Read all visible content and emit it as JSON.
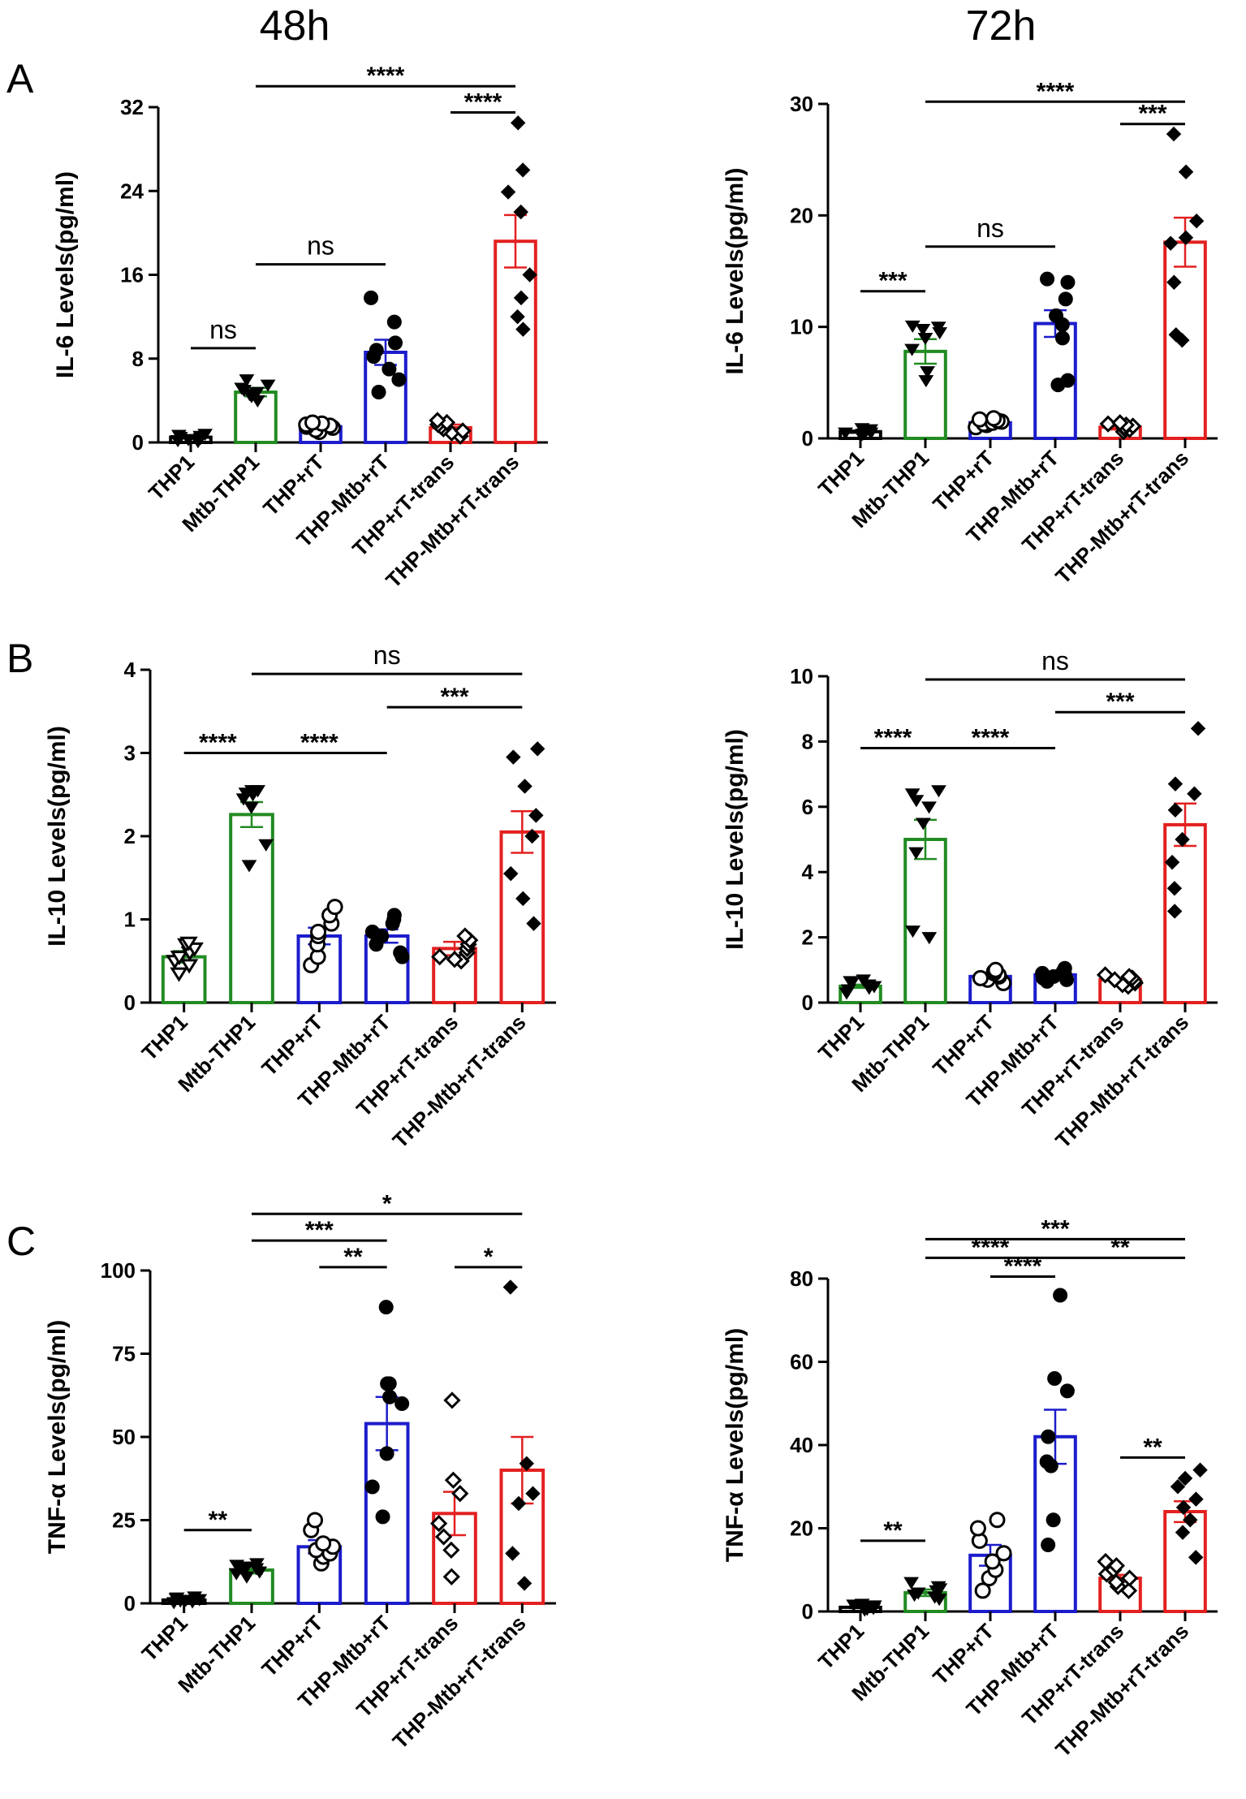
{
  "column_titles": [
    "48h",
    "72h"
  ],
  "panel_letters": [
    "A",
    "B",
    "C"
  ],
  "chart_data": [
    {
      "id": "A48",
      "type": "bar",
      "title": "",
      "xlabel": "",
      "ylabel": "IL-6 Levels(pg/ml)",
      "ylim": [
        0,
        32
      ],
      "yticks": [
        0,
        8,
        16,
        24,
        32
      ],
      "categories": [
        "THP1",
        "Mtb-THP1",
        "THP+rT",
        "THP-Mtb+rT",
        "THP+rT-trans",
        "THP-Mtb+rT-trans"
      ],
      "colors": [
        "#000000",
        "#228B22",
        "#1c1ccc",
        "#1c1ccc",
        "#e32020",
        "#e32020"
      ],
      "markers": [
        "tri",
        "tri",
        "circle-open",
        "circle",
        "diamond-open",
        "diamond"
      ],
      "values": [
        0.5,
        4.8,
        1.5,
        8.6,
        1.4,
        19.2
      ],
      "sem": [
        0.1,
        0.4,
        0.2,
        1.2,
        0.3,
        2.5
      ],
      "points": [
        [
          0.1,
          0.2,
          0.3,
          0.4,
          0.5,
          0.6,
          0.7,
          0.8
        ],
        [
          4.0,
          4.4,
          4.6,
          4.8,
          5.0,
          5.2,
          5.5,
          6.0
        ],
        [
          1.0,
          1.2,
          1.4,
          1.5,
          1.6,
          1.7,
          1.8,
          1.9
        ],
        [
          4.8,
          6.0,
          7.0,
          8.2,
          8.8,
          9.5,
          11.5,
          13.8
        ],
        [
          0.6,
          0.9,
          1.1,
          1.3,
          1.5,
          1.7,
          1.9,
          2.1
        ],
        [
          10.8,
          12.0,
          13.8,
          16.0,
          22.0,
          23.9,
          26.0,
          30.5
        ]
      ],
      "comparisons": [
        {
          "from": 0,
          "to": 1,
          "label": "ns",
          "y": 9
        },
        {
          "from": 1,
          "to": 3,
          "label": "ns",
          "y": 17
        },
        {
          "from": 4,
          "to": 5,
          "label": "****",
          "y": 31.5
        },
        {
          "from": 1,
          "to": 5,
          "label": "****",
          "y": 34
        }
      ]
    },
    {
      "id": "A72",
      "type": "bar",
      "title": "",
      "xlabel": "",
      "ylabel": "IL-6 Levels(pg/ml)",
      "ylim": [
        0,
        30
      ],
      "yticks": [
        0,
        10,
        20,
        30
      ],
      "categories": [
        "THP1",
        "Mtb-THP1",
        "THP+rT",
        "THP-Mtb+rT",
        "THP+rT-trans",
        "THP-Mtb+rT-trans"
      ],
      "colors": [
        "#000000",
        "#228B22",
        "#1c1ccc",
        "#1c1ccc",
        "#e32020",
        "#e32020"
      ],
      "markers": [
        "tri",
        "tri",
        "circle-open",
        "circle",
        "diamond-open",
        "diamond"
      ],
      "values": [
        0.6,
        7.8,
        1.4,
        10.3,
        1.0,
        17.6
      ],
      "sem": [
        0.1,
        1.1,
        0.2,
        1.2,
        0.2,
        2.2
      ],
      "points": [
        [
          0.3,
          0.4,
          0.5,
          0.5,
          0.6,
          0.7,
          0.8,
          0.9
        ],
        [
          5.2,
          6.0,
          8.0,
          9.0,
          9.5,
          9.8,
          10.0,
          10.1
        ],
        [
          1.0,
          1.2,
          1.3,
          1.4,
          1.5,
          1.6,
          1.7,
          1.8
        ],
        [
          4.8,
          5.2,
          9.0,
          10.2,
          11.0,
          12.5,
          14.0,
          14.3
        ],
        [
          0.6,
          0.8,
          0.9,
          1.0,
          1.1,
          1.2,
          1.3,
          1.4
        ],
        [
          8.8,
          9.3,
          14.0,
          17.5,
          18.0,
          19.5,
          23.9,
          27.3
        ]
      ],
      "comparisons": [
        {
          "from": 0,
          "to": 1,
          "label": "***",
          "y": 13.2
        },
        {
          "from": 1,
          "to": 3,
          "label": "ns",
          "y": 17.2
        },
        {
          "from": 4,
          "to": 5,
          "label": "***",
          "y": 28.2
        },
        {
          "from": 1,
          "to": 5,
          "label": "****",
          "y": 30.2
        }
      ]
    },
    {
      "id": "B48",
      "type": "bar",
      "title": "",
      "xlabel": "",
      "ylabel": "IL-10 Levels(pg/ml)",
      "ylim": [
        0,
        4
      ],
      "yticks": [
        0,
        1,
        2,
        3,
        4
      ],
      "categories": [
        "THP1",
        "Mtb-THP1",
        "THP+rT",
        "THP-Mtb+rT",
        "THP+rT-trans",
        "THP-Mtb+rT-trans"
      ],
      "colors": [
        "#228B22",
        "#228B22",
        "#1c1ccc",
        "#1c1ccc",
        "#e32020",
        "#e32020"
      ],
      "markers": [
        "tri-open",
        "tri",
        "circle-open",
        "circle",
        "diamond-open",
        "diamond"
      ],
      "values": [
        0.55,
        2.26,
        0.8,
        0.8,
        0.65,
        2.05
      ],
      "sem": [
        0.07,
        0.15,
        0.1,
        0.08,
        0.08,
        0.25
      ],
      "points": [
        [
          0.35,
          0.45,
          0.5,
          0.55,
          0.6,
          0.65,
          0.7,
          0.72
        ],
        [
          1.65,
          1.9,
          2.35,
          2.45,
          2.5,
          2.52,
          2.55,
          2.55
        ],
        [
          0.45,
          0.55,
          0.7,
          0.8,
          0.85,
          0.95,
          1.05,
          1.15
        ],
        [
          0.55,
          0.6,
          0.7,
          0.8,
          0.85,
          0.95,
          1.0,
          1.05
        ],
        [
          0.5,
          0.52,
          0.55,
          0.6,
          0.65,
          0.7,
          0.75,
          0.8
        ],
        [
          0.95,
          1.25,
          1.55,
          2.0,
          2.25,
          2.6,
          2.95,
          3.05
        ]
      ],
      "comparisons": [
        {
          "from": 0,
          "to": 1,
          "label": "****",
          "y": 3.0
        },
        {
          "from": 1,
          "to": 3,
          "label": "****",
          "y": 3.0
        },
        {
          "from": 3,
          "to": 5,
          "label": "***",
          "y": 3.55
        },
        {
          "from": 1,
          "to": 5,
          "label": "ns",
          "y": 3.95
        }
      ]
    },
    {
      "id": "B72",
      "type": "bar",
      "title": "",
      "xlabel": "",
      "ylabel": "IL-10 Levels(pg/ml)",
      "ylim": [
        0,
        10
      ],
      "yticks": [
        0,
        2,
        4,
        6,
        8,
        10
      ],
      "categories": [
        "THP1",
        "Mtb-THP1",
        "THP+rT",
        "THP-Mtb+rT",
        "THP+rT-trans",
        "THP-Mtb+rT-trans"
      ],
      "colors": [
        "#228B22",
        "#228B22",
        "#1c1ccc",
        "#1c1ccc",
        "#e32020",
        "#e32020"
      ],
      "markers": [
        "tri",
        "tri",
        "circle-open",
        "circle",
        "diamond-open",
        "diamond"
      ],
      "values": [
        0.5,
        5.0,
        0.8,
        0.85,
        0.7,
        5.45
      ],
      "sem": [
        0.05,
        0.6,
        0.05,
        0.05,
        0.05,
        0.65
      ],
      "points": [
        [
          0.3,
          0.4,
          0.45,
          0.5,
          0.55,
          0.6,
          0.65,
          0.7
        ],
        [
          2.0,
          2.2,
          4.6,
          5.5,
          6.0,
          6.2,
          6.4,
          6.5
        ],
        [
          0.6,
          0.7,
          0.75,
          0.8,
          0.85,
          0.9,
          0.95,
          1.0
        ],
        [
          0.65,
          0.7,
          0.75,
          0.8,
          0.85,
          0.9,
          0.95,
          1.05
        ],
        [
          0.5,
          0.55,
          0.6,
          0.65,
          0.7,
          0.75,
          0.8,
          0.85
        ],
        [
          2.8,
          3.5,
          4.3,
          5.0,
          5.9,
          6.4,
          6.7,
          8.4
        ]
      ],
      "comparisons": [
        {
          "from": 0,
          "to": 1,
          "label": "****",
          "y": 7.8
        },
        {
          "from": 1,
          "to": 3,
          "label": "****",
          "y": 7.8
        },
        {
          "from": 3,
          "to": 5,
          "label": "***",
          "y": 8.9
        },
        {
          "from": 1,
          "to": 5,
          "label": "ns",
          "y": 9.9
        }
      ]
    },
    {
      "id": "C48",
      "type": "bar",
      "title": "",
      "xlabel": "",
      "ylabel": "TNF-α Levels(pg/ml)",
      "ylim": [
        0,
        100
      ],
      "yticks": [
        0,
        25,
        50,
        75,
        100
      ],
      "categories": [
        "THP1",
        "Mtb-THP1",
        "THP+rT",
        "THP-Mtb+rT",
        "THP+rT-trans",
        "THP-Mtb+rT-trans"
      ],
      "colors": [
        "#000000",
        "#228B22",
        "#1c1ccc",
        "#1c1ccc",
        "#e32020",
        "#e32020"
      ],
      "markers": [
        "tri",
        "tri",
        "circle-open",
        "circle",
        "diamond-open",
        "diamond"
      ],
      "values": [
        1.0,
        10.0,
        17.0,
        54.0,
        27.0,
        40.0
      ],
      "sem": [
        0.3,
        1.0,
        2.0,
        8.0,
        6.5,
        10.0
      ],
      "points": [
        [
          0.3,
          0.5,
          0.8,
          1.0,
          1.2,
          1.5,
          1.7,
          2.0
        ],
        [
          8.0,
          9.0,
          9.5,
          10.0,
          10.5,
          11.0,
          11.5,
          12.0
        ],
        [
          12.0,
          14.0,
          15.0,
          16.0,
          17.0,
          18.0,
          22.0,
          25.0
        ],
        [
          26.0,
          35.0,
          45.0,
          60.0,
          62.0,
          66.0,
          66.0,
          89.0
        ],
        [
          8.0,
          16.0,
          20.0,
          24.0,
          33.0,
          37.0,
          61.0
        ],
        [
          6.0,
          15.0,
          30.0,
          33.0,
          42.0,
          95.0
        ]
      ],
      "comparisons": [
        {
          "from": 0,
          "to": 1,
          "label": "**",
          "y": 22.0
        },
        {
          "from": 2,
          "to": 3,
          "label": "**",
          "y": 101.0
        },
        {
          "from": 1,
          "to": 3,
          "label": "***",
          "y": 109.0
        },
        {
          "from": 4,
          "to": 5,
          "label": "*",
          "y": 101.0
        },
        {
          "from": 1,
          "to": 5,
          "label": "*",
          "y": 117.0
        }
      ]
    },
    {
      "id": "C72",
      "type": "bar",
      "title": "",
      "xlabel": "",
      "ylabel": "TNF-α Levels(pg/ml)",
      "ylim": [
        0,
        80
      ],
      "yticks": [
        0,
        20,
        40,
        60,
        80
      ],
      "categories": [
        "THP1",
        "Mtb-THP1",
        "THP+rT",
        "THP-Mtb+rT",
        "THP+rT-trans",
        "THP-Mtb+rT-trans"
      ],
      "colors": [
        "#000000",
        "#228B22",
        "#1c1ccc",
        "#1c1ccc",
        "#e32020",
        "#e32020"
      ],
      "markers": [
        "tri",
        "tri",
        "circle-open",
        "circle",
        "diamond-open",
        "diamond"
      ],
      "values": [
        1.0,
        4.5,
        13.5,
        42.0,
        8.0,
        24.0
      ],
      "sem": [
        0.2,
        0.8,
        2.5,
        6.5,
        0.8,
        2.5
      ],
      "points": [
        [
          0.4,
          0.6,
          0.8,
          1.0,
          1.2,
          1.4,
          1.6,
          1.8
        ],
        [
          3.0,
          3.5,
          4.0,
          4.5,
          5.0,
          5.5,
          6.0,
          7.0
        ],
        [
          5.0,
          8.0,
          10.0,
          12.0,
          14.0,
          17.0,
          20.0,
          22.0
        ],
        [
          16.0,
          22.0,
          35.0,
          36.0,
          42.0,
          53.0,
          56.0,
          76.0
        ],
        [
          5.0,
          6.0,
          7.0,
          8.0,
          9.0,
          10.0,
          11.0,
          12.0
        ],
        [
          13.0,
          19.0,
          22.0,
          25.0,
          27.0,
          30.0,
          32.0,
          34.0
        ]
      ],
      "comparisons": [
        {
          "from": 0,
          "to": 1,
          "label": "**",
          "y": 17.0
        },
        {
          "from": 4,
          "to": 5,
          "label": "**",
          "y": 37.0
        },
        {
          "from": 2,
          "to": 3,
          "label": "****",
          "y": 80.5
        },
        {
          "from": 1,
          "to": 3,
          "label": "****",
          "y": 85.0
        },
        {
          "from": 3,
          "to": 5,
          "label": "**",
          "y": 85.0
        },
        {
          "from": 1,
          "to": 5,
          "label": "***",
          "y": 89.5
        }
      ]
    }
  ]
}
